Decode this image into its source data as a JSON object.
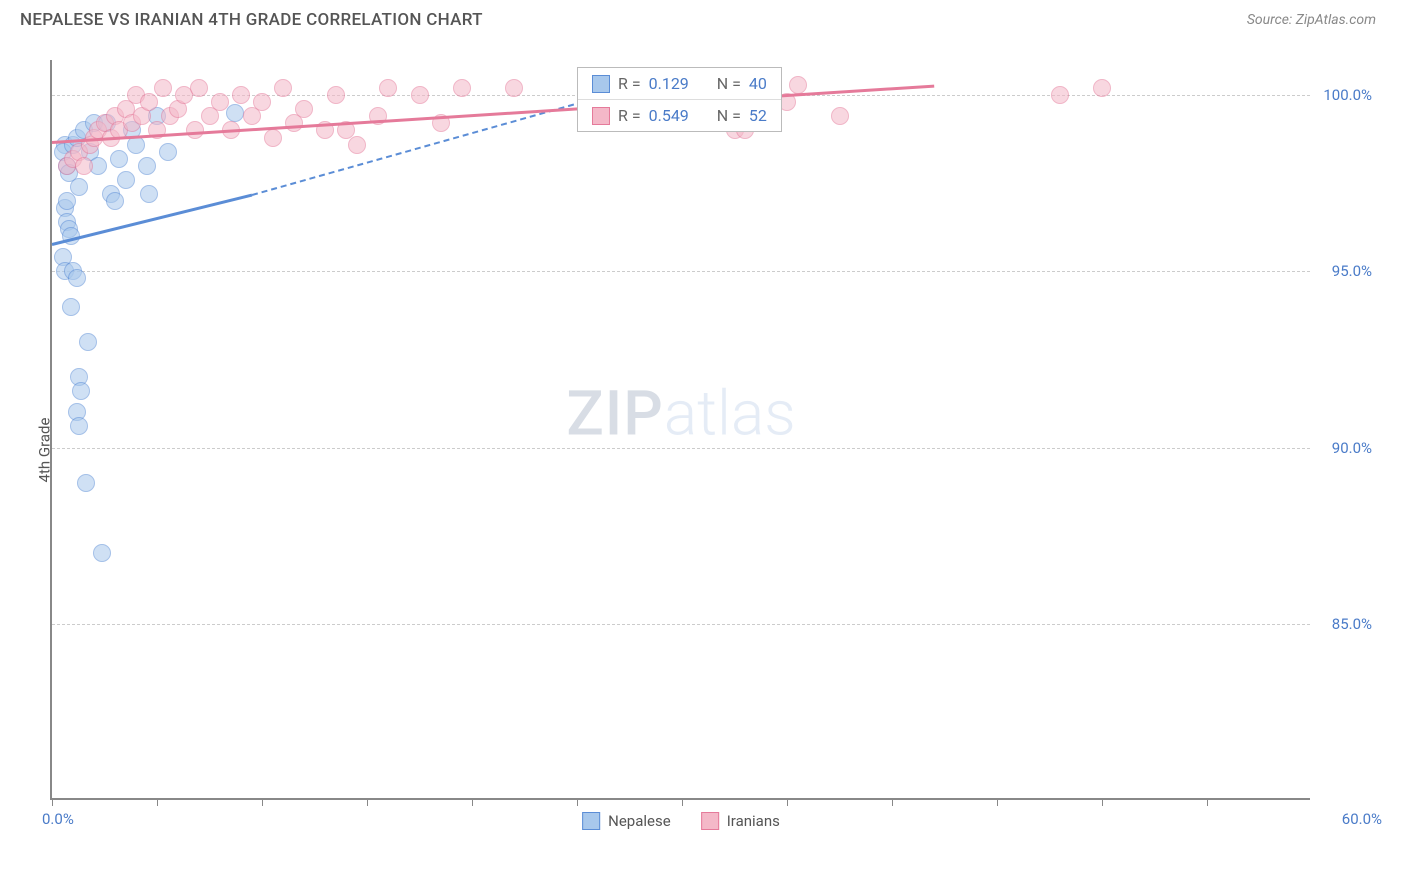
{
  "title": "NEPALESE VS IRANIAN 4TH GRADE CORRELATION CHART",
  "source": "Source: ZipAtlas.com",
  "ylabel": "4th Grade",
  "watermark_zip": "ZIP",
  "watermark_atlas": "atlas",
  "chart": {
    "type": "scatter",
    "xlim": [
      0,
      60
    ],
    "ylim": [
      80,
      101
    ],
    "xtick_positions": [
      0,
      5,
      10,
      15,
      20,
      25,
      30,
      35,
      40,
      45,
      50,
      55
    ],
    "xlabel_start": "0.0%",
    "xlabel_end": "60.0%",
    "yticks": [
      {
        "v": 85,
        "label": "85.0%"
      },
      {
        "v": 90,
        "label": "90.0%"
      },
      {
        "v": 95,
        "label": "95.0%"
      },
      {
        "v": 100,
        "label": "100.0%"
      }
    ],
    "grid_color": "#cccccc",
    "background_color": "#ffffff",
    "marker_radius": 9,
    "marker_opacity": 0.55,
    "series": [
      {
        "name": "Nepalese",
        "color_fill": "#a8c8ec",
        "color_stroke": "#5b8dd6",
        "r_value": "0.129",
        "n_value": "40",
        "trend": {
          "x1": 0,
          "y1": 95.8,
          "x2": 9.5,
          "y2": 97.2,
          "dash_x2": 28,
          "dash_y2": 100.3
        },
        "points": [
          [
            0.6,
            98.6
          ],
          [
            0.5,
            98.4
          ],
          [
            0.7,
            98.0
          ],
          [
            0.8,
            97.8
          ],
          [
            1.0,
            98.6
          ],
          [
            1.2,
            98.8
          ],
          [
            1.5,
            99.0
          ],
          [
            1.3,
            97.4
          ],
          [
            1.8,
            98.4
          ],
          [
            2.0,
            99.2
          ],
          [
            0.6,
            96.8
          ],
          [
            0.7,
            96.4
          ],
          [
            0.8,
            96.2
          ],
          [
            0.5,
            95.4
          ],
          [
            0.6,
            95.0
          ],
          [
            1.0,
            95.0
          ],
          [
            1.2,
            94.8
          ],
          [
            0.9,
            94.0
          ],
          [
            1.7,
            93.0
          ],
          [
            1.3,
            92.0
          ],
          [
            1.4,
            91.6
          ],
          [
            1.2,
            91.0
          ],
          [
            1.3,
            90.6
          ],
          [
            1.6,
            89.0
          ],
          [
            2.4,
            87.0
          ],
          [
            4.6,
            97.2
          ],
          [
            3.2,
            98.2
          ],
          [
            3.8,
            99.0
          ],
          [
            4.0,
            98.6
          ],
          [
            5.0,
            99.4
          ],
          [
            2.6,
            99.2
          ],
          [
            2.2,
            98.0
          ],
          [
            2.8,
            97.2
          ],
          [
            3.0,
            97.0
          ],
          [
            3.5,
            97.6
          ],
          [
            4.5,
            98.0
          ],
          [
            5.5,
            98.4
          ],
          [
            8.7,
            99.5
          ],
          [
            0.7,
            97.0
          ],
          [
            0.9,
            96.0
          ]
        ]
      },
      {
        "name": "Iranians",
        "color_fill": "#f4b8c8",
        "color_stroke": "#e57a9a",
        "r_value": "0.549",
        "n_value": "52",
        "trend": {
          "x1": 0,
          "y1": 98.7,
          "x2": 42,
          "y2": 100.3,
          "dash_x2": 42,
          "dash_y2": 100.3
        },
        "points": [
          [
            0.7,
            98.0
          ],
          [
            1.0,
            98.2
          ],
          [
            1.3,
            98.4
          ],
          [
            1.5,
            98.0
          ],
          [
            1.8,
            98.6
          ],
          [
            2.0,
            98.8
          ],
          [
            2.2,
            99.0
          ],
          [
            2.5,
            99.2
          ],
          [
            2.8,
            98.8
          ],
          [
            3.0,
            99.4
          ],
          [
            3.2,
            99.0
          ],
          [
            3.5,
            99.6
          ],
          [
            3.8,
            99.2
          ],
          [
            4.0,
            100.0
          ],
          [
            4.3,
            99.4
          ],
          [
            4.6,
            99.8
          ],
          [
            5.0,
            99.0
          ],
          [
            5.3,
            100.2
          ],
          [
            5.6,
            99.4
          ],
          [
            6.0,
            99.6
          ],
          [
            6.3,
            100.0
          ],
          [
            6.8,
            99.0
          ],
          [
            7.0,
            100.2
          ],
          [
            7.5,
            99.4
          ],
          [
            8.0,
            99.8
          ],
          [
            8.5,
            99.0
          ],
          [
            9.0,
            100.0
          ],
          [
            9.5,
            99.4
          ],
          [
            10.0,
            99.8
          ],
          [
            10.5,
            98.8
          ],
          [
            11.0,
            100.2
          ],
          [
            11.5,
            99.2
          ],
          [
            12.0,
            99.6
          ],
          [
            13.0,
            99.0
          ],
          [
            13.5,
            100.0
          ],
          [
            14.0,
            99.0
          ],
          [
            14.5,
            98.6
          ],
          [
            15.5,
            99.4
          ],
          [
            16.0,
            100.2
          ],
          [
            17.5,
            100.0
          ],
          [
            18.5,
            99.2
          ],
          [
            19.5,
            100.2
          ],
          [
            22.0,
            100.2
          ],
          [
            28.5,
            99.2
          ],
          [
            30.0,
            99.6
          ],
          [
            32.5,
            99.0
          ],
          [
            33.0,
            99.0
          ],
          [
            35.0,
            99.8
          ],
          [
            35.5,
            100.3
          ],
          [
            37.5,
            99.4
          ],
          [
            48.0,
            100.0
          ],
          [
            50.0,
            100.2
          ]
        ]
      }
    ]
  },
  "legend_top": {
    "label_r": "R  =",
    "label_n": "N  ="
  }
}
